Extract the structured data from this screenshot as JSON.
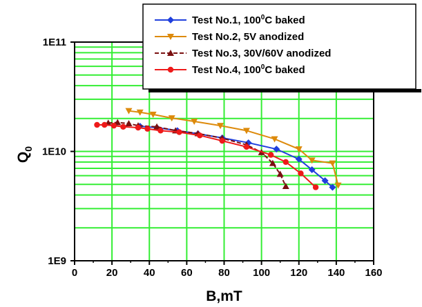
{
  "chart_data": {
    "type": "line",
    "xlabel": "B,mT",
    "ylabel": "Q",
    "ylabel_sub": "0",
    "xlim": [
      0,
      160
    ],
    "ylim": [
      1000000000,
      100000000000
    ],
    "y_scale": "log",
    "grid": true,
    "grid_color": "#33ee33",
    "legend_position": "top-right",
    "x_ticks": [
      0,
      20,
      40,
      60,
      80,
      100,
      120,
      140,
      160
    ],
    "x_tick_labels": [
      "0",
      "20",
      "40",
      "60",
      "80",
      "100",
      "120",
      "140",
      "160"
    ],
    "y_ticks": [
      1000000000,
      10000000000,
      100000000000
    ],
    "y_tick_labels": [
      "1E9",
      "1E10",
      "1E11"
    ],
    "series": [
      {
        "name": "Test No.1, 100°C baked",
        "legend_main": "Test No.1, 100",
        "legend_sup": "0",
        "legend_tail": "C baked",
        "color": "#1f3fdd",
        "marker": "diamond",
        "x": [
          35,
          44,
          55,
          66,
          79,
          93,
          108,
          120,
          127,
          134,
          138
        ],
        "y": [
          17000000000,
          16500000000,
          15500000000,
          14500000000,
          13300000000,
          12000000000,
          10500000000,
          8500000000,
          6800000000,
          5400000000,
          4700000000
        ]
      },
      {
        "name": "Test No.2, 5V anodized",
        "legend_main": "Test No.2, 5V anodized",
        "legend_sup": "",
        "legend_tail": "",
        "color": "#dd8a0b",
        "marker": "triangle-down",
        "x": [
          29,
          35,
          42,
          52,
          64,
          78,
          92,
          107,
          120,
          127,
          138,
          141
        ],
        "y": [
          23500000000,
          22800000000,
          21800000000,
          20200000000,
          18800000000,
          17200000000,
          15500000000,
          13000000000,
          10500000000,
          8300000000,
          7800000000,
          4900000000
        ]
      },
      {
        "name": "Test No.3, 30V/60V anodized",
        "legend_main": "Test No.3, 30V/60V anodized",
        "legend_sup": "",
        "legend_tail": "",
        "color": "#7a1010",
        "marker": "triangle-up",
        "x": [
          18,
          23,
          29,
          34,
          44,
          54,
          66,
          79,
          92,
          100,
          106,
          110,
          113
        ],
        "y": [
          18200000000,
          18400000000,
          18000000000,
          17200000000,
          16800000000,
          15500000000,
          14600000000,
          13200000000,
          11500000000,
          9800000000,
          7800000000,
          6200000000,
          4800000000
        ]
      },
      {
        "name": "Test No.4, 100°C baked",
        "legend_main": "Test No.4, 100",
        "legend_sup": "0",
        "legend_tail": "C baked",
        "color": "#ee1a1a",
        "marker": "circle",
        "x": [
          12,
          16,
          21,
          26,
          34,
          39,
          46,
          56,
          67,
          79,
          92,
          105,
          113,
          121,
          129
        ],
        "y": [
          17500000000,
          17500000000,
          17200000000,
          16800000000,
          16500000000,
          16100000000,
          15500000000,
          15000000000,
          14000000000,
          12500000000,
          11000000000,
          9300000000,
          8000000000,
          6300000000,
          4700000000
        ]
      }
    ]
  }
}
